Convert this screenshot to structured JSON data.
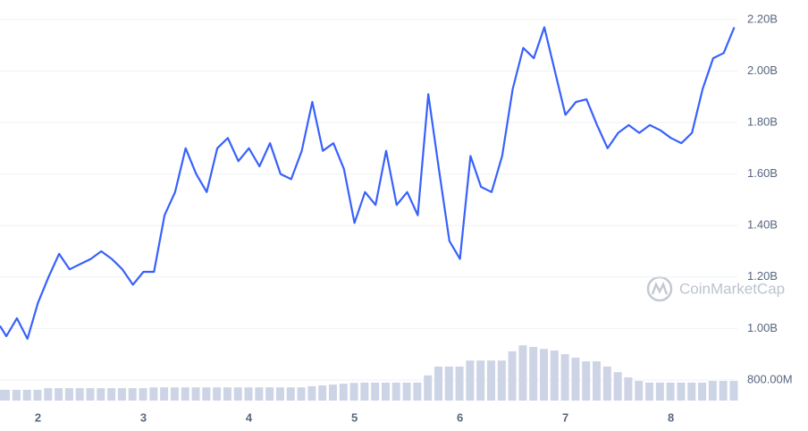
{
  "chart_data": {
    "type": "line",
    "watermark": "CoinMarketCap",
    "x": [
      1.64,
      1.7,
      1.8,
      1.9,
      2.0,
      2.1,
      2.2,
      2.3,
      2.4,
      2.5,
      2.6,
      2.7,
      2.8,
      2.9,
      3.0,
      3.1,
      3.2,
      3.3,
      3.4,
      3.5,
      3.6,
      3.7,
      3.8,
      3.9,
      4.0,
      4.1,
      4.2,
      4.3,
      4.4,
      4.5,
      4.6,
      4.7,
      4.8,
      4.9,
      5.0,
      5.1,
      5.2,
      5.3,
      5.4,
      5.5,
      5.6,
      5.7,
      5.8,
      5.9,
      6.0,
      6.1,
      6.2,
      6.3,
      6.4,
      6.5,
      6.6,
      6.7,
      6.8,
      6.9,
      7.0,
      7.1,
      7.2,
      7.3,
      7.4,
      7.5,
      7.6,
      7.7,
      7.8,
      7.9,
      8.0,
      8.1,
      8.2,
      8.3,
      8.4,
      8.5,
      8.6
    ],
    "series": [
      {
        "type": "line",
        "color": "#3861fb",
        "values": [
          1010000000.0,
          970000000.0,
          1040000000.0,
          960000000.0,
          1100000000.0,
          1200000000.0,
          1290000000.0,
          1230000000.0,
          1250000000.0,
          1270000000.0,
          1300000000.0,
          1270000000.0,
          1230000000.0,
          1170000000.0,
          1220000000.0,
          1220000000.0,
          1440000000.0,
          1530000000.0,
          1700000000.0,
          1600000000.0,
          1530000000.0,
          1700000000.0,
          1740000000.0,
          1650000000.0,
          1700000000.0,
          1630000000.0,
          1720000000.0,
          1600000000.0,
          1580000000.0,
          1690000000.0,
          1880000000.0,
          1690000000.0,
          1720000000.0,
          1620000000.0,
          1410000000.0,
          1530000000.0,
          1480000000.0,
          1690000000.0,
          1480000000.0,
          1530000000.0,
          1440000000.0,
          1910000000.0,
          1620000000.0,
          1340000000.0,
          1270000000.0,
          1670000000.0,
          1550000000.0,
          1530000000.0,
          1670000000.0,
          1930000000.0,
          2090000000.0,
          2050000000.0,
          2170000000.0,
          2000000000.0,
          1830000000.0,
          1880000000.0,
          1890000000.0,
          1790000000.0,
          1700000000.0,
          1760000000.0,
          1790000000.0,
          1760000000.0,
          1790000000.0,
          1770000000.0,
          1740000000.0,
          1720000000.0,
          1760000000.0,
          1930000000.0,
          2050000000.0,
          2070000000.0,
          2170000000.0
        ]
      },
      {
        "type": "bar",
        "axis": "y2",
        "color": "#cdd4e6",
        "values": [
          2.7,
          2.7,
          2.7,
          2.7,
          2.7,
          3.1,
          3.1,
          3.1,
          3.1,
          3.1,
          3.1,
          3.1,
          3.1,
          3.1,
          3.1,
          3.3,
          3.3,
          3.3,
          3.3,
          3.3,
          3.3,
          3.3,
          3.3,
          3.3,
          3.3,
          3.3,
          3.3,
          3.3,
          3.3,
          3.3,
          3.6,
          3.8,
          4.0,
          4.2,
          4.4,
          4.5,
          4.5,
          4.5,
          4.5,
          4.5,
          4.5,
          6.3,
          8.5,
          8.5,
          8.5,
          10,
          10,
          10,
          10,
          12.3,
          13.8,
          13.4,
          12.9,
          12.5,
          11.6,
          10.7,
          9.8,
          9.8,
          8.5,
          7.1,
          5.8,
          4.9,
          4.5,
          4.5,
          4.5,
          4.5,
          4.5,
          4.5,
          4.9,
          4.9,
          4.9
        ]
      }
    ],
    "xlim": [
      1.64,
      8.63
    ],
    "xticks": [
      2,
      3,
      4,
      5,
      6,
      7,
      8
    ],
    "ylim": [
      720000000.0,
      2276000000.0
    ],
    "yticks": [
      {
        "value": 2200000000.0,
        "label": "2.20B"
      },
      {
        "value": 2000000000.0,
        "label": "2.00B"
      },
      {
        "value": 1800000000.0,
        "label": "1.80B"
      },
      {
        "value": 1600000000.0,
        "label": "1.60B"
      },
      {
        "value": 1400000000.0,
        "label": "1.40B"
      },
      {
        "value": 1200000000.0,
        "label": "1.20B"
      },
      {
        "value": 1000000000.0,
        "label": "1.00B"
      },
      {
        "value": 800000000.0,
        "label": "800.00M"
      }
    ],
    "y2lim": [
      0,
      100
    ],
    "grid": true
  }
}
